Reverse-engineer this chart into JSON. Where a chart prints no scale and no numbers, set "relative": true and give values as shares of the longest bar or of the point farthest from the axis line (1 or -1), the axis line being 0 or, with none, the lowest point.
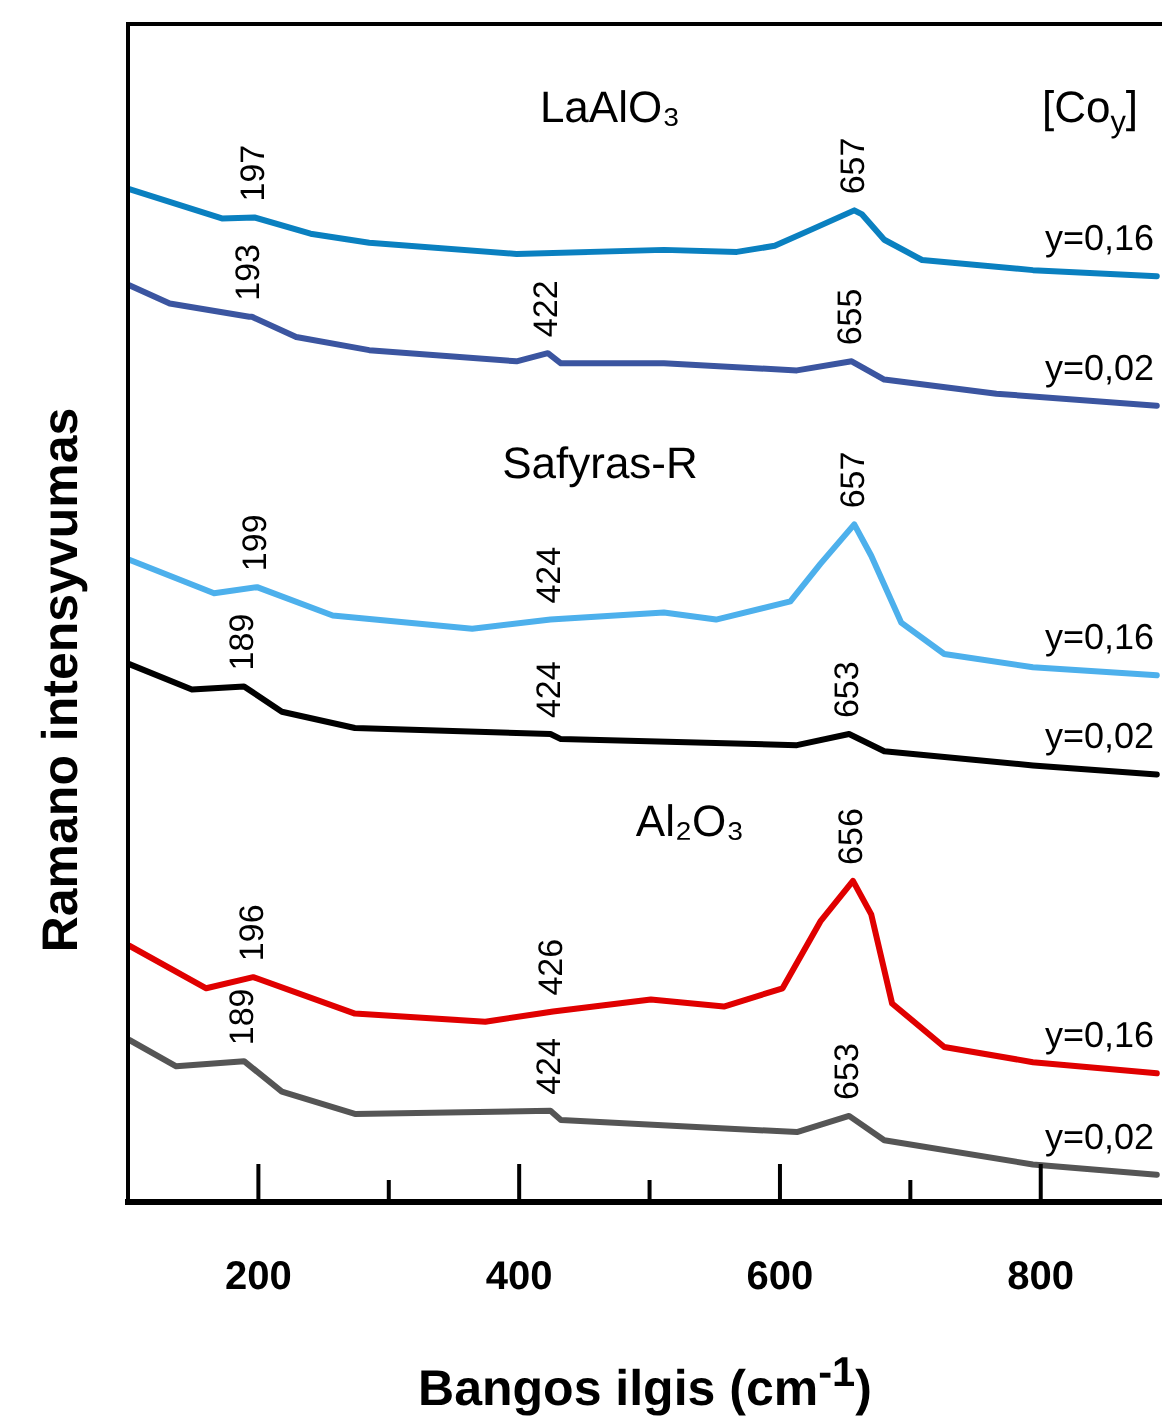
{
  "chart_data": {
    "type": "line",
    "relative": true,
    "xlabel": "Bangos ilgis (cm$^{-1}$)",
    "ylabel": "Ramano intensyvumas",
    "xlim": [
      100,
      893
    ],
    "xticks": [
      200,
      {
        "value": 300,
        "label": null
      },
      400,
      {
        "value": 500,
        "label": null
      },
      600,
      {
        "value": 700,
        "label": null
      },
      800
    ],
    "legend": false,
    "grid": false,
    "marker": "none",
    "line_style": "solid",
    "series": [
      {
        "name": "y=0,16",
        "color": "#0a80c0",
        "x": [
          101,
          172,
          197,
          240,
          285,
          398,
          511,
          567,
          596,
          624,
          657,
          663,
          680,
          709,
          794,
          889
        ],
        "values": [
          1,
          0.971,
          0.972,
          0.956,
          0.947,
          0.936,
          0.94,
          0.938,
          0.944,
          0.96,
          0.979,
          0.975,
          0.95,
          0.93,
          0.92,
          0.914
        ]
      },
      {
        "name": "y=0,02",
        "color": "#3b55a0",
        "x": [
          101,
          132,
          193,
          195,
          229,
          285,
          398,
          422,
          432,
          511,
          613,
          655,
          680,
          766,
          889
        ],
        "values": [
          0.905,
          0.887,
          0.874,
          0.874,
          0.854,
          0.841,
          0.83,
          0.838,
          0.828,
          0.828,
          0.821,
          0.83,
          0.812,
          0.798,
          0.786
        ]
      },
      {
        "name": "y=0,16",
        "color": "#4db0ec",
        "x": [
          101,
          166,
          199,
          257,
          364,
          424,
          511,
          551,
          608,
          631,
          657,
          670,
          693,
          726,
          794,
          889
        ],
        "values": [
          0.634,
          0.601,
          0.607,
          0.579,
          0.566,
          0.575,
          0.582,
          0.575,
          0.593,
          0.63,
          0.669,
          0.638,
          0.572,
          0.541,
          0.528,
          0.52
        ]
      },
      {
        "name": "y=0,02",
        "color": "#000000",
        "x": [
          101,
          149,
          189,
          218,
          274,
          424,
          432,
          613,
          653,
          680,
          794,
          889
        ],
        "values": [
          0.531,
          0.506,
          0.509,
          0.484,
          0.468,
          0.462,
          0.457,
          0.451,
          0.462,
          0.445,
          0.431,
          0.422
        ]
      },
      {
        "name": "y=0,16",
        "color": "#e00000",
        "x": [
          101,
          160,
          196,
          274,
          374,
          426,
          501,
          557,
          602,
          631,
          656,
          670,
          686,
          726,
          794,
          889
        ],
        "values": [
          0.253,
          0.211,
          0.222,
          0.186,
          0.178,
          0.188,
          0.2,
          0.193,
          0.211,
          0.277,
          0.317,
          0.284,
          0.196,
          0.153,
          0.138,
          0.127
        ]
      },
      {
        "name": "y=0,02",
        "color": "#555555",
        "x": [
          101,
          137,
          189,
          218,
          274,
          424,
          432,
          613,
          653,
          680,
          794,
          889
        ],
        "values": [
          0.16,
          0.134,
          0.139,
          0.109,
          0.087,
          0.09,
          0.081,
          0.069,
          0.085,
          0.061,
          0.037,
          0.027
        ]
      }
    ],
    "annotations": [
      "LaAlO₃",
      "[Co$_{y}$]",
      "Safyras-R",
      "Al₂O₃",
      {
        "text": "197",
        "x": 197,
        "y": 0.972
      },
      {
        "text": "657",
        "x": 657,
        "y": 0.979
      },
      {
        "text": "193",
        "x": 193,
        "y": 0.874
      },
      {
        "text": "422",
        "x": 422,
        "y": 0.838
      },
      {
        "text": "655",
        "x": 655,
        "y": 0.83
      },
      {
        "text": "199",
        "x": 199,
        "y": 0.607
      },
      {
        "text": "424",
        "x": 424,
        "y": 0.575
      },
      {
        "text": "657",
        "x": 657,
        "y": 0.669
      },
      {
        "text": "189",
        "x": 189,
        "y": 0.509
      },
      {
        "text": "424",
        "x": 424,
        "y": 0.462
      },
      {
        "text": "653",
        "x": 653,
        "y": 0.462
      },
      {
        "text": "196",
        "x": 196,
        "y": 0.222
      },
      {
        "text": "426",
        "x": 426,
        "y": 0.188
      },
      {
        "text": "656",
        "x": 656,
        "y": 0.317
      },
      {
        "text": "189",
        "x": 189,
        "y": 0.139
      },
      {
        "text": "424",
        "x": 424,
        "y": 0.09
      },
      {
        "text": "653",
        "x": 653,
        "y": 0.085
      }
    ]
  }
}
